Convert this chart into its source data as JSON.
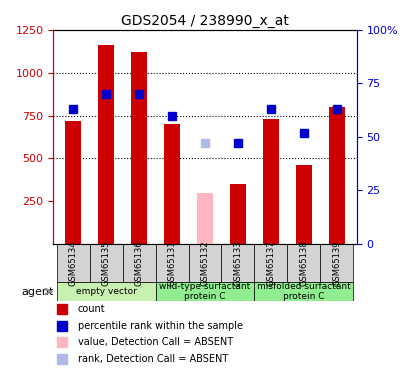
{
  "title": "GDS2054 / 238990_x_at",
  "samples": [
    "GSM65134",
    "GSM65135",
    "GSM65136",
    "GSM65131",
    "GSM65132",
    "GSM65133",
    "GSM65137",
    "GSM65138",
    "GSM65139"
  ],
  "counts": [
    720,
    1160,
    1120,
    700,
    0,
    350,
    730,
    460,
    800
  ],
  "absent_counts": [
    0,
    0,
    0,
    0,
    300,
    0,
    0,
    0,
    0
  ],
  "percentile_ranks": [
    63,
    70,
    70,
    60,
    0,
    47,
    63,
    52,
    63
  ],
  "absent_ranks": [
    0,
    0,
    0,
    0,
    47,
    0,
    0,
    0,
    0
  ],
  "is_absent": [
    false,
    false,
    false,
    false,
    true,
    false,
    false,
    false,
    false
  ],
  "ylim_left": [
    0,
    1250
  ],
  "ylim_right": [
    0,
    100
  ],
  "yticks_left": [
    250,
    500,
    750,
    1000,
    1250
  ],
  "yticks_right": [
    0,
    25,
    50,
    75,
    100
  ],
  "groups": [
    {
      "label": "empty vector",
      "indices": [
        0,
        1,
        2
      ],
      "color": "#c8f0b0"
    },
    {
      "label": "wild-type surfactant\nprotein C",
      "indices": [
        3,
        4,
        5
      ],
      "color": "#90ee90"
    },
    {
      "label": "misfolded surfactant\nprotein C",
      "indices": [
        6,
        7,
        8
      ],
      "color": "#90ee90"
    }
  ],
  "bar_color": "#cc0000",
  "absent_bar_color": "#ffb6c1",
  "rank_color": "#0000cc",
  "absent_rank_color": "#b0b8e8",
  "bar_width": 0.5,
  "plot_bg": "#ffffff",
  "left_label_color": "#cc0000",
  "right_label_color": "#0000cc",
  "legend_items": [
    {
      "label": "count",
      "color": "#cc0000"
    },
    {
      "label": "percentile rank within the sample",
      "color": "#0000cc"
    },
    {
      "label": "value, Detection Call = ABSENT",
      "color": "#ffb6c1"
    },
    {
      "label": "rank, Detection Call = ABSENT",
      "color": "#b0b8e8"
    }
  ],
  "agent_label": "agent",
  "figsize": [
    4.1,
    3.75
  ],
  "dpi": 100
}
